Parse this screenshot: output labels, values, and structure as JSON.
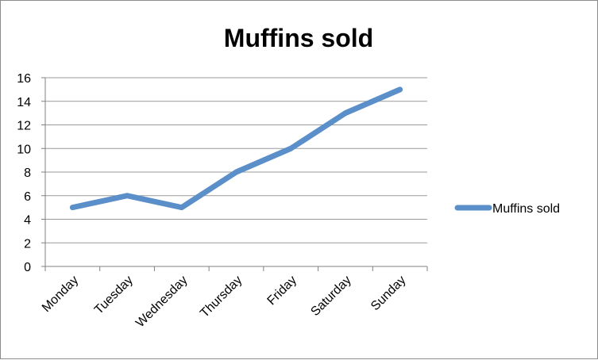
{
  "chart_data": {
    "type": "line",
    "title": "Muffins sold",
    "xlabel": "",
    "ylabel": "",
    "categories": [
      "Monday",
      "Tuesday",
      "Wednesday",
      "Thursday",
      "Friday",
      "Saturday",
      "Sunday"
    ],
    "series": [
      {
        "name": "Muffins sold",
        "values": [
          5,
          6,
          5,
          8,
          10,
          13,
          15
        ]
      }
    ],
    "ylim": [
      0,
      16
    ],
    "yticks": [
      0,
      2,
      4,
      6,
      8,
      10,
      12,
      14,
      16
    ],
    "grid": true,
    "legend": "right",
    "line_color": "#5b8fc9",
    "grid_color": "#9a9a9a"
  }
}
